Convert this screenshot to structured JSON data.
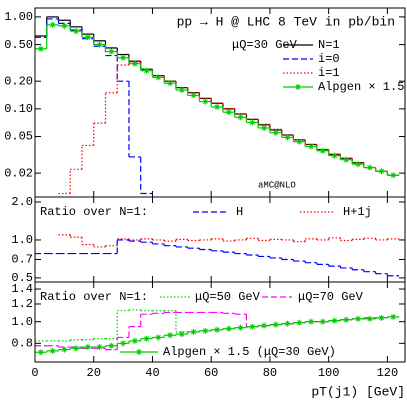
{
  "chart_data": [
    {
      "type": "histogram",
      "title": "pp → H @ LHC 8 TeV in pb/bin",
      "scale_note": "μQ=30 GeV",
      "generator_note": "aMC@NLO",
      "bins": [
        0,
        4,
        8,
        12,
        16,
        20,
        24,
        28,
        32,
        36,
        40,
        44,
        48,
        52,
        56,
        60,
        64,
        68,
        72,
        76,
        80,
        84,
        88,
        92,
        96,
        100,
        104,
        108,
        112,
        116,
        120,
        124
      ],
      "xlim": [
        0,
        126
      ],
      "ylim": [
        0.011,
        1.25
      ],
      "log_y": true,
      "yticks": [
        {
          "value": 1,
          "label": "1.00"
        },
        {
          "value": 0.5,
          "label": "0.50"
        },
        {
          "value": 0.2,
          "label": "0.20"
        },
        {
          "value": 0.1,
          "label": "0.10"
        },
        0.05,
        0.02
      ],
      "series": [
        {
          "name": "N=1",
          "color": "#000000",
          "style": "solid",
          "values": [
            0.62,
            1.0,
            0.92,
            0.78,
            0.65,
            0.55,
            0.46,
            0.39,
            0.33,
            0.27,
            0.23,
            0.2,
            0.17,
            0.15,
            0.13,
            0.115,
            0.1,
            0.088,
            0.077,
            0.067,
            0.059,
            0.052,
            0.046,
            0.041,
            0.036,
            0.032,
            0.029,
            0.026,
            0.023,
            0.021,
            0.019
          ]
        },
        {
          "name": "i=0",
          "color": "#0000ff",
          "style": "dashed",
          "values": [
            0.6,
            0.95,
            0.85,
            0.72,
            0.58,
            0.48,
            0.38,
            0.2,
            0.03,
            0.012,
            null,
            null,
            null,
            null,
            null,
            null,
            null,
            null,
            null,
            null,
            null,
            null,
            null,
            null,
            null,
            null,
            null,
            null,
            null,
            null,
            null
          ]
        },
        {
          "name": "i=1",
          "color": "#ff0000",
          "style": "dotted",
          "values": [
            null,
            null,
            0.012,
            0.022,
            0.04,
            0.07,
            0.15,
            0.3,
            0.32,
            0.27,
            0.23,
            0.2,
            0.17,
            0.15,
            0.13,
            0.116,
            0.101,
            0.088,
            0.077,
            0.068,
            0.06,
            0.052,
            0.046,
            0.041,
            0.036,
            0.032,
            0.029,
            0.026,
            0.023,
            0.021,
            0.019
          ]
        },
        {
          "name": "Alpgen × 1.5",
          "color": "#00cc00",
          "style": "solid",
          "marker": "star",
          "values": [
            0.45,
            0.82,
            0.8,
            0.7,
            0.6,
            0.5,
            0.42,
            0.36,
            0.31,
            0.26,
            0.22,
            0.19,
            0.16,
            0.14,
            0.12,
            0.105,
            0.092,
            0.081,
            0.071,
            0.062,
            0.055,
            0.049,
            0.044,
            0.039,
            0.035,
            0.031,
            0.028,
            0.025,
            0.023,
            0.021,
            0.019
          ]
        }
      ]
    },
    {
      "type": "histogram",
      "subtitle": "Ratio over N=1:",
      "bins": [
        0,
        4,
        8,
        12,
        16,
        20,
        24,
        28,
        32,
        36,
        40,
        44,
        48,
        52,
        56,
        60,
        64,
        68,
        72,
        76,
        80,
        84,
        88,
        92,
        96,
        100,
        104,
        108,
        112,
        116,
        120,
        124
      ],
      "xlim": [
        0,
        126
      ],
      "ylim": [
        0.464,
        2.19
      ],
      "log_y": true,
      "yticks": [
        {
          "value": 2,
          "label": "2.0"
        },
        {
          "value": 1,
          "label": "1.0"
        },
        0.7,
        0.5
      ],
      "series": [
        {
          "name": "H",
          "color": "#0000ff",
          "style": "dashed",
          "values": [
            0.78,
            0.78,
            0.78,
            0.78,
            0.78,
            0.78,
            0.78,
            1.0,
            0.98,
            0.96,
            0.93,
            0.9,
            0.88,
            0.86,
            0.84,
            0.82,
            0.8,
            0.78,
            0.76,
            0.74,
            0.72,
            0.7,
            0.68,
            0.66,
            0.64,
            0.62,
            0.6,
            0.58,
            0.56,
            0.54,
            0.52
          ]
        },
        {
          "name": "H+1j",
          "color": "#ff0000",
          "style": "dotted",
          "values": [
            null,
            null,
            1.1,
            1.05,
            0.92,
            0.88,
            0.9,
            1.02,
            1.0,
            1.02,
            1.0,
            0.98,
            1.01,
            0.99,
            1.0,
            1.02,
            0.98,
            1.0,
            1.03,
            0.99,
            1.01,
            1.0,
            0.97,
            1.02,
            1.0,
            1.04,
            0.99,
            1.01,
            1.03,
            1.0,
            1.02
          ]
        }
      ]
    },
    {
      "type": "histogram",
      "subtitle": "Ratio over N=1:",
      "x_label": "pT(j1) [GeV]",
      "bins": [
        0,
        4,
        8,
        12,
        16,
        20,
        24,
        28,
        32,
        36,
        40,
        44,
        48,
        52,
        56,
        60,
        64,
        68,
        72,
        76,
        80,
        84,
        88,
        92,
        96,
        100,
        104,
        108,
        112,
        116,
        120,
        124
      ],
      "xlim": [
        0,
        126
      ],
      "xticks": [
        0,
        20,
        40,
        60,
        80,
        100,
        120
      ],
      "ylim": [
        0.66,
        1.505
      ],
      "log_y": true,
      "yticks": [
        1.4,
        1.2,
        {
          "value": 1,
          "label": "1.0"
        },
        0.8
      ],
      "series": [
        {
          "name": "μQ=50 GeV",
          "color": "#00cc00",
          "style": "dotted",
          "values": [
            0.82,
            0.82,
            0.82,
            0.83,
            0.83,
            0.84,
            0.84,
            1.12,
            1.13,
            1.12,
            1.12,
            1.12,
            0.9,
            0.9,
            0.91,
            0.92,
            0.93,
            0.94,
            0.95,
            0.96,
            0.97,
            0.98,
            0.99,
            1.0,
            1.0,
            1.01,
            1.02,
            1.03,
            1.03,
            1.04,
            1.05
          ]
        },
        {
          "name": "μQ=70 GeV",
          "color": "#ff00ff",
          "style": "dashed",
          "values": [
            0.78,
            0.78,
            0.77,
            0.77,
            0.76,
            0.76,
            0.75,
            0.85,
            0.95,
            1.08,
            1.09,
            1.1,
            1.1,
            1.1,
            1.1,
            1.1,
            1.09,
            1.08,
            0.95,
            0.96,
            0.97,
            0.98,
            0.99,
            1.0,
            1.0,
            1.01,
            1.02,
            1.03,
            1.04,
            1.04,
            1.05
          ]
        },
        {
          "name": "Alpgen × 1.5 (μQ=30 GeV)",
          "color": "#00cc00",
          "style": "solid",
          "marker": "star",
          "values": [
            0.73,
            0.74,
            0.75,
            0.76,
            0.77,
            0.77,
            0.78,
            0.8,
            0.82,
            0.84,
            0.85,
            0.87,
            0.88,
            0.9,
            0.91,
            0.92,
            0.93,
            0.94,
            0.95,
            0.96,
            0.97,
            0.98,
            0.99,
            1.0,
            1.0,
            1.01,
            1.02,
            1.03,
            1.03,
            1.04,
            1.05
          ]
        }
      ]
    }
  ]
}
